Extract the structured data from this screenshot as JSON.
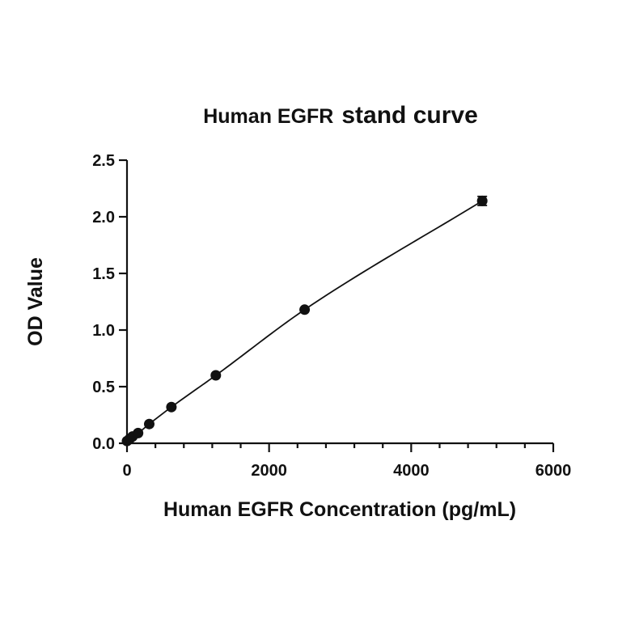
{
  "chart_data": {
    "type": "scatter",
    "title_part1": "Human EGFR",
    "title_part2": "stand curve",
    "xlabel": "Human EGFR Concentration (pg/mL)",
    "ylabel": "OD Value",
    "xlim": [
      0,
      6000
    ],
    "ylim": [
      0,
      2.5
    ],
    "x_ticks": [
      0,
      2000,
      4000,
      6000
    ],
    "x_tick_labels": [
      "0",
      "2000",
      "4000",
      "6000"
    ],
    "x_minor_step": 400,
    "y_ticks": [
      0,
      0.5,
      1.0,
      1.5,
      2.0,
      2.5
    ],
    "y_tick_labels": [
      "0.0",
      "0.5",
      "1.0",
      "1.5",
      "2.0",
      "2.5"
    ],
    "grid": false,
    "fit_curve": true,
    "series": [
      {
        "x": [
          0,
          39,
          78,
          156,
          313,
          625,
          1250,
          2500,
          5000
        ],
        "y": [
          0.02,
          0.04,
          0.06,
          0.09,
          0.17,
          0.32,
          0.6,
          1.18,
          2.14
        ],
        "y_err": [
          0,
          0,
          0,
          0,
          0,
          0,
          0,
          0,
          0.04
        ]
      }
    ]
  }
}
